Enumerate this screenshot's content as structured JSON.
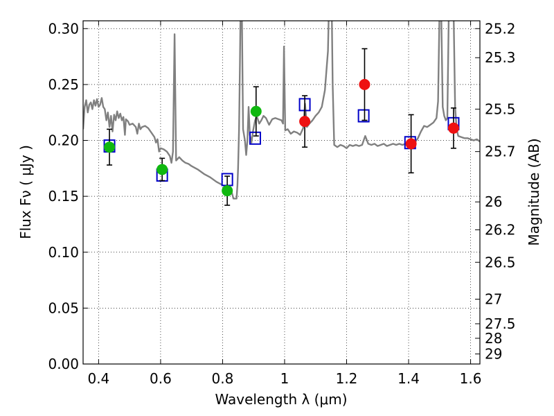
{
  "chart_data": {
    "type": "scatter",
    "xlabel": "Wavelength  λ (μm)",
    "ylabel": "Flux  Fν  ( μJy )",
    "y2label": "Magnitude (AB)",
    "xlim": [
      0.35,
      1.63
    ],
    "ylim": [
      0.0,
      0.307
    ],
    "grid": true,
    "x_ticks": [
      0.4,
      0.6,
      0.8,
      1.0,
      1.2,
      1.4,
      1.6
    ],
    "x_tick_labels": [
      "0.4",
      "0.6",
      "0.8",
      "1",
      "1.2",
      "1.4",
      "1.6"
    ],
    "y_ticks": [
      0.0,
      0.05,
      0.1,
      0.15,
      0.2,
      0.25,
      0.3
    ],
    "y_tick_labels": [
      "0.00",
      "0.05",
      "0.10",
      "0.15",
      "0.20",
      "0.25",
      "0.30"
    ],
    "magnitude_ticks": [
      {
        "label": "25.2",
        "flux": 0.3
      },
      {
        "label": "25.3",
        "flux": 0.274
      },
      {
        "label": "25.5",
        "flux": 0.228
      },
      {
        "label": "25.7",
        "flux": 0.19
      },
      {
        "label": "26",
        "flux": 0.145
      },
      {
        "label": "26.2",
        "flux": 0.12
      },
      {
        "label": "26.5",
        "flux": 0.091
      },
      {
        "label": "27",
        "flux": 0.058
      },
      {
        "label": "27.5",
        "flux": 0.036
      },
      {
        "label": "28",
        "flux": 0.023
      },
      {
        "label": "29",
        "flux": 0.009
      }
    ],
    "series": [
      {
        "kind": "line",
        "color": "#808080",
        "points": [
          [
            0.35,
            0.21
          ],
          [
            0.355,
            0.23
          ],
          [
            0.36,
            0.236
          ],
          [
            0.365,
            0.225
          ],
          [
            0.37,
            0.232
          ],
          [
            0.375,
            0.234
          ],
          [
            0.38,
            0.228
          ],
          [
            0.385,
            0.236
          ],
          [
            0.39,
            0.231
          ],
          [
            0.395,
            0.237
          ],
          [
            0.4,
            0.23
          ],
          [
            0.405,
            0.232
          ],
          [
            0.41,
            0.238
          ],
          [
            0.415,
            0.23
          ],
          [
            0.42,
            0.228
          ],
          [
            0.425,
            0.218
          ],
          [
            0.43,
            0.225
          ],
          [
            0.435,
            0.212
          ],
          [
            0.44,
            0.222
          ],
          [
            0.445,
            0.208
          ],
          [
            0.45,
            0.223
          ],
          [
            0.455,
            0.218
          ],
          [
            0.46,
            0.226
          ],
          [
            0.465,
            0.22
          ],
          [
            0.47,
            0.224
          ],
          [
            0.475,
            0.218
          ],
          [
            0.48,
            0.221
          ],
          [
            0.485,
            0.205
          ],
          [
            0.488,
            0.219
          ],
          [
            0.495,
            0.217
          ],
          [
            0.5,
            0.214
          ],
          [
            0.51,
            0.215
          ],
          [
            0.52,
            0.212
          ],
          [
            0.525,
            0.206
          ],
          [
            0.53,
            0.215
          ],
          [
            0.535,
            0.21
          ],
          [
            0.54,
            0.212
          ],
          [
            0.55,
            0.213
          ],
          [
            0.56,
            0.211
          ],
          [
            0.57,
            0.207
          ],
          [
            0.58,
            0.203
          ],
          [
            0.585,
            0.198
          ],
          [
            0.59,
            0.201
          ],
          [
            0.595,
            0.19
          ],
          [
            0.6,
            0.193
          ],
          [
            0.61,
            0.192
          ],
          [
            0.62,
            0.19
          ],
          [
            0.63,
            0.186
          ],
          [
            0.635,
            0.18
          ],
          [
            0.64,
            0.19
          ],
          [
            0.645,
            0.295
          ],
          [
            0.65,
            0.182
          ],
          [
            0.66,
            0.185
          ],
          [
            0.67,
            0.182
          ],
          [
            0.68,
            0.18
          ],
          [
            0.69,
            0.179
          ],
          [
            0.7,
            0.177
          ],
          [
            0.72,
            0.174
          ],
          [
            0.74,
            0.17
          ],
          [
            0.76,
            0.167
          ],
          [
            0.78,
            0.163
          ],
          [
            0.8,
            0.16
          ],
          [
            0.82,
            0.157
          ],
          [
            0.83,
            0.153
          ],
          [
            0.835,
            0.148
          ],
          [
            0.845,
            0.148
          ],
          [
            0.848,
            0.16
          ],
          [
            0.85,
            0.175
          ],
          [
            0.853,
            0.21
          ],
          [
            0.856,
            0.27
          ],
          [
            0.858,
            0.32
          ],
          [
            0.862,
            0.32
          ],
          [
            0.866,
            0.21
          ],
          [
            0.872,
            0.2
          ],
          [
            0.876,
            0.187
          ],
          [
            0.88,
            0.2
          ],
          [
            0.884,
            0.23
          ],
          [
            0.888,
            0.205
          ],
          [
            0.893,
            0.198
          ],
          [
            0.898,
            0.208
          ],
          [
            0.905,
            0.218
          ],
          [
            0.91,
            0.222
          ],
          [
            0.918,
            0.215
          ],
          [
            0.925,
            0.218
          ],
          [
            0.932,
            0.222
          ],
          [
            0.94,
            0.22
          ],
          [
            0.95,
            0.214
          ],
          [
            0.96,
            0.219
          ],
          [
            0.97,
            0.22
          ],
          [
            0.98,
            0.219
          ],
          [
            0.99,
            0.218
          ],
          [
            0.995,
            0.215
          ],
          [
            0.998,
            0.284
          ],
          [
            1.002,
            0.209
          ],
          [
            1.01,
            0.21
          ],
          [
            1.02,
            0.206
          ],
          [
            1.03,
            0.208
          ],
          [
            1.04,
            0.207
          ],
          [
            1.05,
            0.205
          ],
          [
            1.06,
            0.211
          ],
          [
            1.066,
            0.233
          ],
          [
            1.072,
            0.212
          ],
          [
            1.08,
            0.215
          ],
          [
            1.09,
            0.218
          ],
          [
            1.1,
            0.222
          ],
          [
            1.11,
            0.225
          ],
          [
            1.12,
            0.23
          ],
          [
            1.13,
            0.245
          ],
          [
            1.14,
            0.28
          ],
          [
            1.143,
            0.32
          ],
          [
            1.152,
            0.32
          ],
          [
            1.155,
            0.25
          ],
          [
            1.16,
            0.196
          ],
          [
            1.17,
            0.194
          ],
          [
            1.18,
            0.196
          ],
          [
            1.19,
            0.195
          ],
          [
            1.2,
            0.193
          ],
          [
            1.21,
            0.196
          ],
          [
            1.22,
            0.195
          ],
          [
            1.23,
            0.196
          ],
          [
            1.24,
            0.195
          ],
          [
            1.25,
            0.196
          ],
          [
            1.26,
            0.204
          ],
          [
            1.27,
            0.197
          ],
          [
            1.28,
            0.196
          ],
          [
            1.29,
            0.197
          ],
          [
            1.3,
            0.195
          ],
          [
            1.31,
            0.196
          ],
          [
            1.32,
            0.197
          ],
          [
            1.33,
            0.195
          ],
          [
            1.34,
            0.196
          ],
          [
            1.35,
            0.197
          ],
          [
            1.36,
            0.196
          ],
          [
            1.37,
            0.197
          ],
          [
            1.38,
            0.196
          ],
          [
            1.39,
            0.197
          ],
          [
            1.4,
            0.196
          ],
          [
            1.41,
            0.197
          ],
          [
            1.42,
            0.198
          ],
          [
            1.43,
            0.202
          ],
          [
            1.44,
            0.208
          ],
          [
            1.45,
            0.213
          ],
          [
            1.46,
            0.212
          ],
          [
            1.47,
            0.214
          ],
          [
            1.48,
            0.216
          ],
          [
            1.49,
            0.22
          ],
          [
            1.495,
            0.235
          ],
          [
            1.5,
            0.32
          ],
          [
            1.505,
            0.32
          ],
          [
            1.51,
            0.23
          ],
          [
            1.515,
            0.222
          ],
          [
            1.52,
            0.218
          ],
          [
            1.525,
            0.22
          ],
          [
            1.53,
            0.32
          ],
          [
            1.545,
            0.32
          ],
          [
            1.55,
            0.23
          ],
          [
            1.555,
            0.21
          ],
          [
            1.56,
            0.204
          ],
          [
            1.57,
            0.203
          ],
          [
            1.58,
            0.202
          ],
          [
            1.59,
            0.202
          ],
          [
            1.6,
            0.201
          ],
          [
            1.61,
            0.2
          ],
          [
            1.62,
            0.201
          ],
          [
            1.63,
            0.199
          ]
        ]
      },
      {
        "kind": "open-square",
        "color": "#0000c8",
        "points": [
          {
            "x": 0.435,
            "y": 0.195
          },
          {
            "x": 0.605,
            "y": 0.169
          },
          {
            "x": 0.815,
            "y": 0.165
          },
          {
            "x": 0.905,
            "y": 0.202
          },
          {
            "x": 1.065,
            "y": 0.232
          },
          {
            "x": 1.255,
            "y": 0.222
          },
          {
            "x": 1.405,
            "y": 0.198
          },
          {
            "x": 1.545,
            "y": 0.215
          }
        ]
      },
      {
        "kind": "filled-circle",
        "color": "#10b810",
        "points": [
          {
            "x": 0.435,
            "y": 0.194,
            "err": 0.016
          },
          {
            "x": 0.605,
            "y": 0.174,
            "err": 0.01
          },
          {
            "x": 0.815,
            "y": 0.155,
            "err": 0.013
          },
          {
            "x": 0.908,
            "y": 0.226,
            "err": 0.022
          }
        ]
      },
      {
        "kind": "filled-circle",
        "color": "#ee1111",
        "points": [
          {
            "x": 1.065,
            "y": 0.217,
            "err": 0.023
          },
          {
            "x": 1.258,
            "y": 0.25,
            "err": 0.032
          },
          {
            "x": 1.408,
            "y": 0.197,
            "err": 0.026
          },
          {
            "x": 1.545,
            "y": 0.211,
            "err": 0.018
          }
        ]
      }
    ]
  }
}
